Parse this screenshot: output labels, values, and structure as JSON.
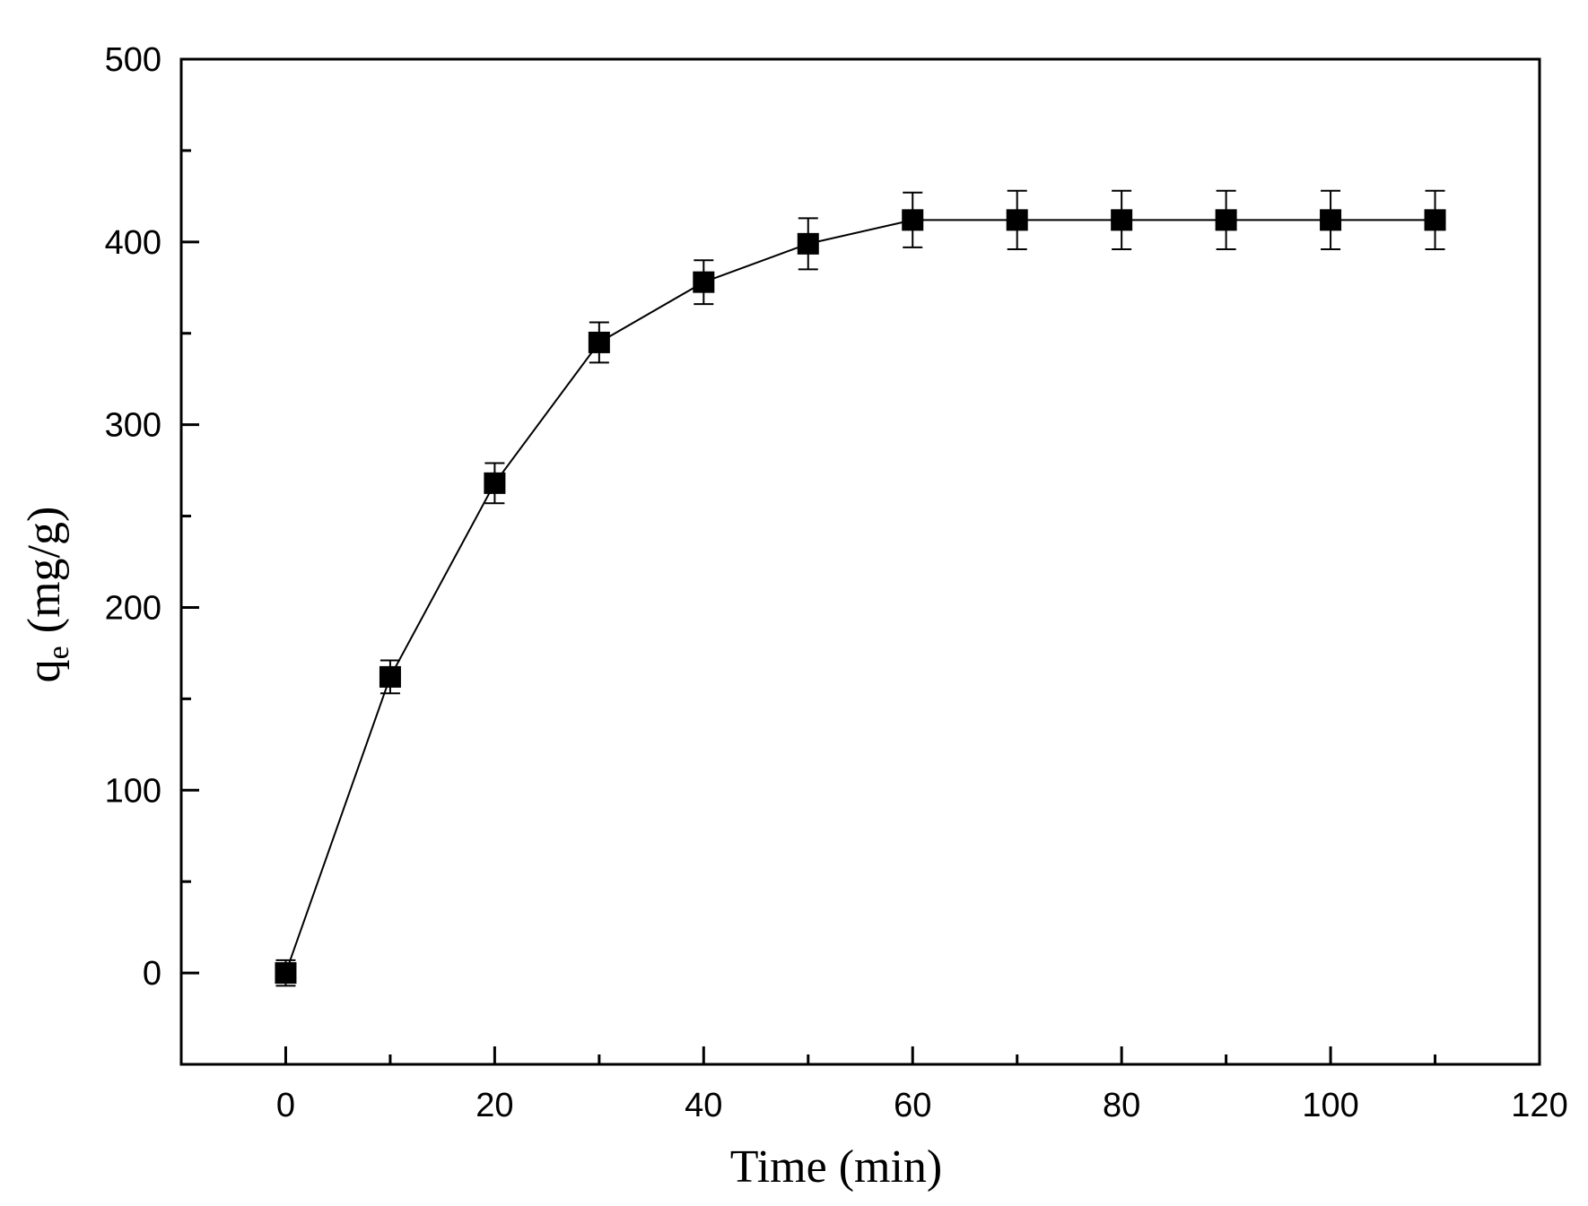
{
  "chart_data": {
    "type": "line",
    "xlabel": "Time (min)",
    "ylabel": {
      "main": "q",
      "sub": "e",
      "unit": "(mg/g)"
    },
    "xlim": [
      -10,
      120
    ],
    "ylim": [
      -50,
      500
    ],
    "x_ticks": [
      0,
      20,
      40,
      60,
      80,
      100,
      120
    ],
    "x_minor_ticks": [
      10,
      30,
      50,
      70,
      90,
      110
    ],
    "y_ticks": [
      0,
      100,
      200,
      300,
      400,
      500
    ],
    "y_minor_ticks": [
      50,
      150,
      250,
      350,
      450
    ],
    "grid": false,
    "marker": "filled-square",
    "color": "#000000",
    "series": [
      {
        "x": [
          0,
          10,
          20,
          30,
          40,
          50,
          60,
          70,
          80,
          90,
          100,
          110
        ],
        "y": [
          0,
          162,
          268,
          345,
          378,
          399,
          412,
          412,
          412,
          412,
          412,
          412
        ],
        "error": [
          7,
          9,
          11,
          11,
          12,
          14,
          15,
          16,
          16,
          16,
          16,
          16
        ]
      }
    ]
  }
}
